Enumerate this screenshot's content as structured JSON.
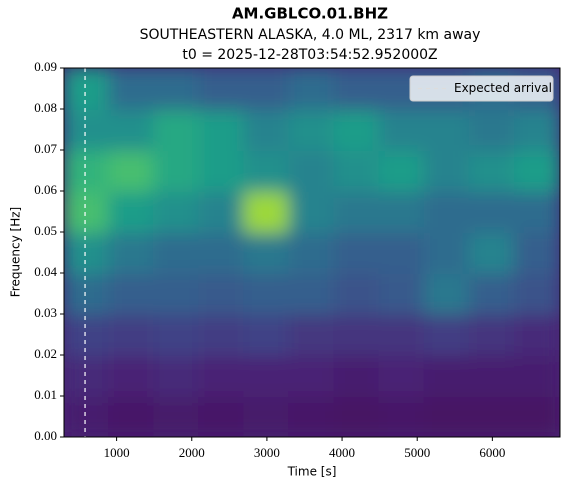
{
  "chart_data": {
    "type": "heatmap",
    "title": "AM.GBLCO.01.BHZ",
    "subtitle": "SOUTHEASTERN ALASKA, 4.0 ML, 2317 km away",
    "subtitle2": "t0 = 2025-12-28T03:54:52.952000Z",
    "xlabel": "Time [s]",
    "ylabel": "Frequency [Hz]",
    "colormap": "viridis",
    "x_edges": [
      300,
      900,
      1500,
      2100,
      2700,
      3300,
      3900,
      4500,
      5100,
      5700,
      6300,
      6900
    ],
    "y_edges": [
      0,
      0.01,
      0.02,
      0.03,
      0.04,
      0.05,
      0.06,
      0.07,
      0.08,
      0.09
    ],
    "z": [
      [
        0.08,
        0.06,
        0.07,
        0.06,
        0.07,
        0.06,
        0.05,
        0.06,
        0.05,
        0.05,
        0.05
      ],
      [
        0.12,
        0.1,
        0.12,
        0.1,
        0.1,
        0.1,
        0.08,
        0.1,
        0.08,
        0.08,
        0.08
      ],
      [
        0.2,
        0.18,
        0.2,
        0.18,
        0.2,
        0.16,
        0.15,
        0.15,
        0.18,
        0.15,
        0.12
      ],
      [
        0.35,
        0.3,
        0.3,
        0.28,
        0.3,
        0.3,
        0.25,
        0.28,
        0.4,
        0.3,
        0.25
      ],
      [
        0.5,
        0.4,
        0.35,
        0.35,
        0.4,
        0.35,
        0.3,
        0.3,
        0.35,
        0.45,
        0.3
      ],
      [
        0.7,
        0.55,
        0.5,
        0.45,
        0.85,
        0.45,
        0.4,
        0.4,
        0.35,
        0.35,
        0.35
      ],
      [
        0.65,
        0.7,
        0.6,
        0.55,
        0.5,
        0.45,
        0.5,
        0.55,
        0.45,
        0.5,
        0.55
      ],
      [
        0.5,
        0.5,
        0.6,
        0.55,
        0.45,
        0.5,
        0.55,
        0.45,
        0.45,
        0.4,
        0.45
      ],
      [
        0.55,
        0.35,
        0.35,
        0.3,
        0.3,
        0.35,
        0.3,
        0.3,
        0.3,
        0.35,
        0.3
      ]
    ],
    "xlim": [
      300,
      6900
    ],
    "ylim": [
      0,
      0.09
    ],
    "xticks": [
      1000,
      2000,
      3000,
      4000,
      5000,
      6000
    ],
    "yticks": [
      {
        "value": 0,
        "label": "0.00"
      },
      {
        "value": 0.01,
        "label": "0.01"
      },
      {
        "value": 0.02,
        "label": "0.02"
      },
      {
        "value": 0.03,
        "label": "0.03"
      },
      {
        "value": 0.04,
        "label": "0.04"
      },
      {
        "value": 0.05,
        "label": "0.05"
      },
      {
        "value": 0.06,
        "label": "0.06"
      },
      {
        "value": 0.07,
        "label": "0.07"
      },
      {
        "value": 0.08,
        "label": "0.08"
      },
      {
        "value": 0.09,
        "label": "0.09"
      }
    ],
    "vlines": [
      {
        "x": 580,
        "name": "Expected arrival",
        "color": "#ffffff"
      }
    ],
    "legend": "upper right"
  }
}
